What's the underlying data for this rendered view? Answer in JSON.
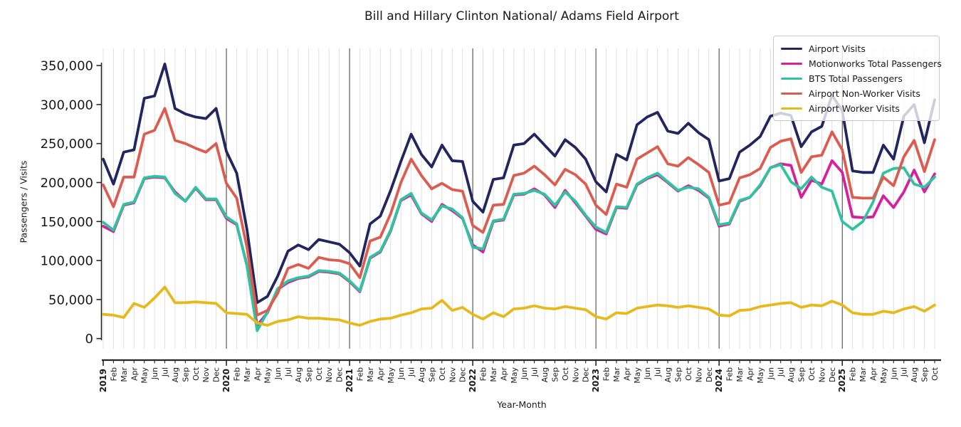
{
  "title": "Bill and Hillary Clinton National/ Adams Field Airport",
  "chart_data": {
    "type": "line",
    "title": "Bill and Hillary Clinton National/ Adams Field Airport",
    "xlabel": "Year-Month",
    "ylabel": "Passengers / Visits",
    "ylim": [
      0,
      370000
    ],
    "yticks": [
      0,
      50000,
      100000,
      150000,
      200000,
      250000,
      300000,
      350000
    ],
    "x_range": "2019-01 to 2025-10",
    "grid": "vertical gridline at every month, dark separator line at every January",
    "legend_position": "upper right",
    "categories": [
      "2019",
      "Feb",
      "Mar",
      "Apr",
      "May",
      "Jun",
      "Jul",
      "Aug",
      "Sep",
      "Oct",
      "Nov",
      "Dec",
      "2020",
      "Feb",
      "Mar",
      "Apr",
      "May",
      "Jun",
      "Jul",
      "Aug",
      "Sep",
      "Oct",
      "Nov",
      "Dec",
      "2021",
      "Feb",
      "Mar",
      "Apr",
      "May",
      "Jun",
      "Jul",
      "Aug",
      "Sep",
      "Oct",
      "Nov",
      "Dec",
      "2022",
      "Feb",
      "Mar",
      "Apr",
      "May",
      "Jun",
      "Jul",
      "Aug",
      "Sep",
      "Oct",
      "Nov",
      "Dec",
      "2023",
      "Feb",
      "Mar",
      "Apr",
      "May",
      "Jun",
      "Jul",
      "Aug",
      "Sep",
      "Oct",
      "Nov",
      "Dec",
      "2024",
      "Feb",
      "Mar",
      "Apr",
      "May",
      "Jun",
      "Jul",
      "Aug",
      "Sep",
      "Oct",
      "Nov",
      "Dec",
      "2025",
      "Feb",
      "Mar",
      "Apr",
      "May",
      "Jun",
      "Jul",
      "Aug",
      "Sep",
      "Oct"
    ],
    "series": [
      {
        "name": "Airport Visits",
        "color": "#23265e",
        "values": [
          230000,
          198000,
          239000,
          242000,
          308000,
          311000,
          352000,
          295000,
          288000,
          284000,
          282000,
          295000,
          240000,
          212000,
          140000,
          46000,
          54000,
          80000,
          112000,
          120000,
          114000,
          127000,
          124000,
          121000,
          110000,
          93000,
          147000,
          157000,
          190000,
          227000,
          262000,
          236000,
          220000,
          248000,
          228000,
          227000,
          176000,
          162000,
          204000,
          206000,
          248000,
          250000,
          262000,
          248000,
          234000,
          255000,
          245000,
          230000,
          201000,
          188000,
          236000,
          229000,
          274000,
          284000,
          290000,
          266000,
          263000,
          276000,
          264000,
          255000,
          202000,
          205000,
          239000,
          248000,
          259000,
          285000,
          289000,
          286000,
          246000,
          265000,
          272000,
          312000,
          292000,
          215000,
          213000,
          213000,
          248000,
          230000,
          285000,
          300000,
          251000,
          306000
        ]
      },
      {
        "name": "Motionworks Total Passengers",
        "color": "#d5219b",
        "values": [
          144000,
          137000,
          171000,
          174000,
          205000,
          207000,
          206000,
          188000,
          176000,
          193000,
          178000,
          178000,
          154000,
          146000,
          94000,
          17000,
          33000,
          63000,
          72000,
          77000,
          79000,
          86000,
          85000,
          83000,
          73000,
          60000,
          103000,
          111000,
          138000,
          177000,
          184000,
          160000,
          150000,
          172000,
          164000,
          154000,
          120000,
          111000,
          150000,
          152000,
          184000,
          185000,
          192000,
          184000,
          168000,
          190000,
          174000,
          157000,
          140000,
          134000,
          168000,
          167000,
          197000,
          205000,
          210000,
          200000,
          189000,
          196000,
          190000,
          180000,
          144000,
          147000,
          176000,
          181000,
          196000,
          219000,
          224000,
          222000,
          181000,
          203000,
          198000,
          228000,
          213000,
          156000,
          155000,
          156000,
          183000,
          168000,
          188000,
          216000,
          188000,
          211000
        ]
      },
      {
        "name": "BTS Total Passengers",
        "color": "#30c39f",
        "values": [
          149000,
          139000,
          172000,
          175000,
          206000,
          208000,
          207000,
          186000,
          176000,
          194000,
          179000,
          179000,
          156000,
          147000,
          93000,
          10000,
          34000,
          64000,
          74000,
          78000,
          80000,
          87000,
          86000,
          84000,
          74000,
          61000,
          104000,
          112000,
          139000,
          178000,
          186000,
          161000,
          152000,
          170000,
          166000,
          155000,
          117000,
          115000,
          151000,
          153000,
          185000,
          186000,
          190000,
          185000,
          171000,
          188000,
          176000,
          158000,
          143000,
          136000,
          169000,
          168000,
          198000,
          206000,
          212000,
          201000,
          190000,
          194000,
          192000,
          181000,
          146000,
          148000,
          177000,
          181000,
          197000,
          219000,
          223000,
          201000,
          192000,
          207000,
          194000,
          189000,
          150000,
          140000,
          150000,
          175000,
          212000,
          218000,
          219000,
          198000,
          194000,
          207000
        ]
      },
      {
        "name": "Airport Non-Worker Visits",
        "color": "#dc5c50",
        "values": [
          197000,
          169000,
          207000,
          207000,
          262000,
          267000,
          295000,
          254000,
          250000,
          244000,
          239000,
          250000,
          199000,
          180000,
          117000,
          30000,
          36000,
          58000,
          90000,
          95000,
          90000,
          104000,
          101000,
          100000,
          96000,
          78000,
          125000,
          130000,
          160000,
          200000,
          230000,
          209000,
          192000,
          199000,
          191000,
          189000,
          145000,
          136000,
          171000,
          172000,
          209000,
          212000,
          221000,
          210000,
          197000,
          217000,
          210000,
          198000,
          171000,
          159000,
          198000,
          194000,
          230000,
          238000,
          246000,
          224000,
          221000,
          232000,
          223000,
          213000,
          171000,
          174000,
          206000,
          210000,
          218000,
          245000,
          253000,
          256000,
          213000,
          233000,
          235000,
          265000,
          242000,
          181000,
          180000,
          180000,
          207000,
          196000,
          233000,
          254000,
          214000,
          255000
        ]
      },
      {
        "name": "Airport Worker Visits",
        "color": "#e6b91c",
        "values": [
          31000,
          30000,
          27000,
          45000,
          40000,
          52000,
          66000,
          46000,
          46000,
          47000,
          46000,
          45000,
          33000,
          32000,
          31000,
          20000,
          17000,
          22000,
          24000,
          28000,
          26000,
          26000,
          25000,
          24000,
          20000,
          17000,
          22000,
          25000,
          26000,
          30000,
          33000,
          38000,
          39000,
          49000,
          36000,
          40000,
          31000,
          25000,
          33000,
          28000,
          38000,
          39000,
          42000,
          39000,
          38000,
          41000,
          39000,
          37000,
          28000,
          25000,
          33000,
          32000,
          39000,
          41000,
          43000,
          42000,
          40000,
          42000,
          40000,
          38000,
          30000,
          29000,
          36000,
          37000,
          41000,
          43000,
          45000,
          46000,
          40000,
          43000,
          42000,
          48000,
          43000,
          33000,
          31000,
          31000,
          35000,
          33000,
          38000,
          41000,
          35000,
          43000
        ]
      }
    ]
  }
}
